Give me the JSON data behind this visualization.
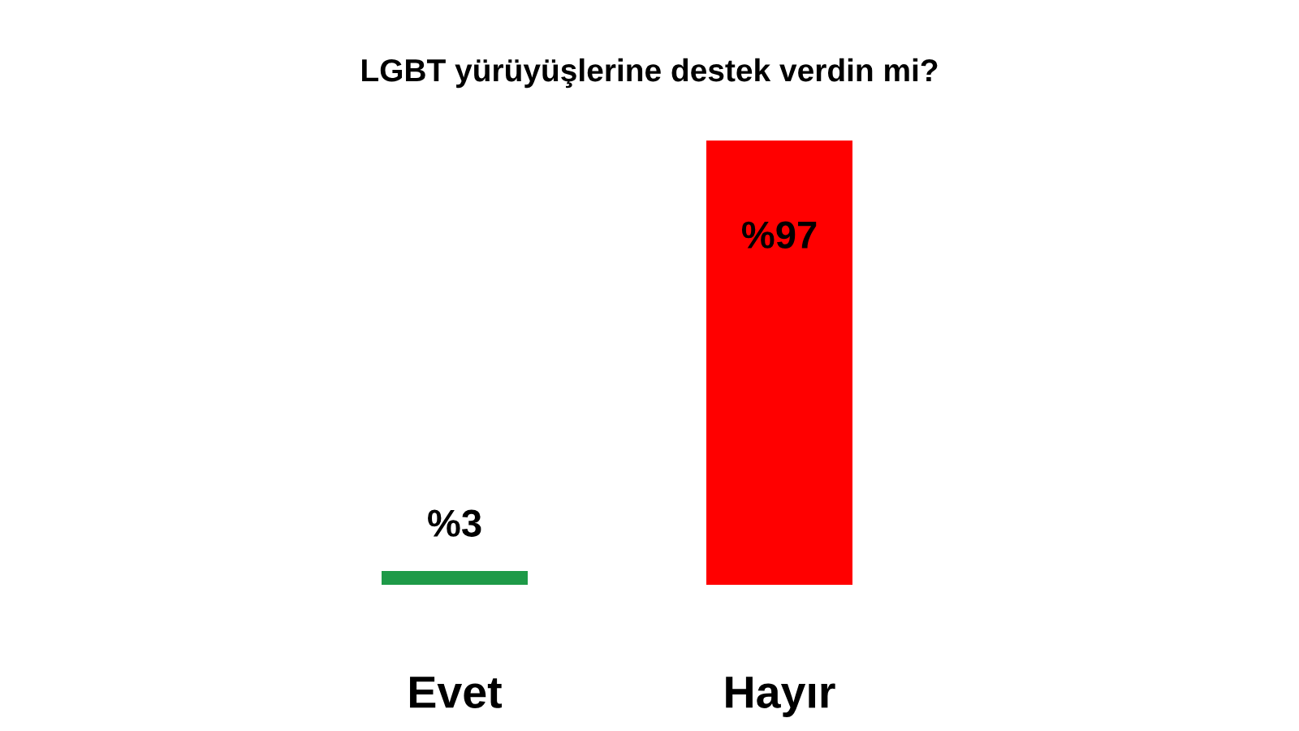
{
  "chart_data": {
    "type": "bar",
    "title": "LGBT yürüyüşlerine destek verdin mi?",
    "categories": [
      "Evet",
      "Hayır"
    ],
    "values": [
      3,
      97
    ],
    "colors": [
      "#1e9a48",
      "#ff0000"
    ],
    "value_labels": [
      "%3",
      "%97"
    ],
    "grid": false,
    "legend": false
  }
}
